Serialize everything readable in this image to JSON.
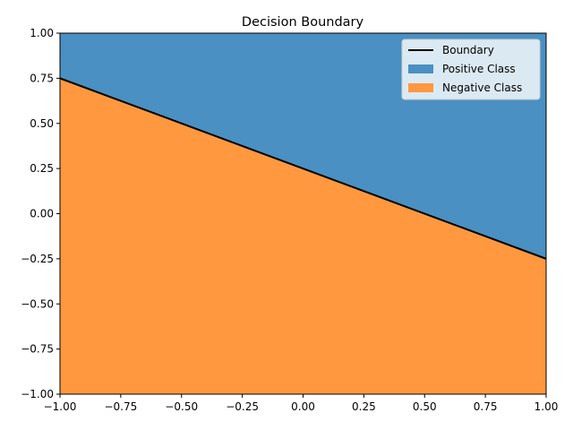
{
  "chart_data": {
    "type": "area",
    "title": "Decision Boundary",
    "xlabel": "",
    "ylabel": "",
    "xlim": [
      -1.0,
      1.0
    ],
    "ylim": [
      -1.0,
      1.0
    ],
    "x_ticks": [
      "−1.00",
      "−0.75",
      "−0.50",
      "−0.25",
      "0.00",
      "0.25",
      "0.50",
      "0.75",
      "1.00"
    ],
    "x_tick_values": [
      -1.0,
      -0.75,
      -0.5,
      -0.25,
      0.0,
      0.25,
      0.5,
      0.75,
      1.0
    ],
    "y_ticks": [
      "−1.00",
      "−0.75",
      "−0.50",
      "−0.25",
      "0.00",
      "0.25",
      "0.50",
      "0.75",
      "1.00"
    ],
    "y_tick_values": [
      -1.0,
      -0.75,
      -0.5,
      -0.25,
      0.0,
      0.25,
      0.5,
      0.75,
      1.0
    ],
    "grid": false,
    "legend_position": "top-right",
    "series": [
      {
        "name": "Boundary",
        "kind": "line",
        "color": "#000000",
        "x": [
          -1.0,
          1.0
        ],
        "y": [
          0.75,
          -0.25
        ]
      },
      {
        "name": "Positive Class",
        "kind": "fill_above",
        "color": "#4a90c2"
      },
      {
        "name": "Negative Class",
        "kind": "fill_below",
        "color": "#ff983f"
      }
    ]
  }
}
